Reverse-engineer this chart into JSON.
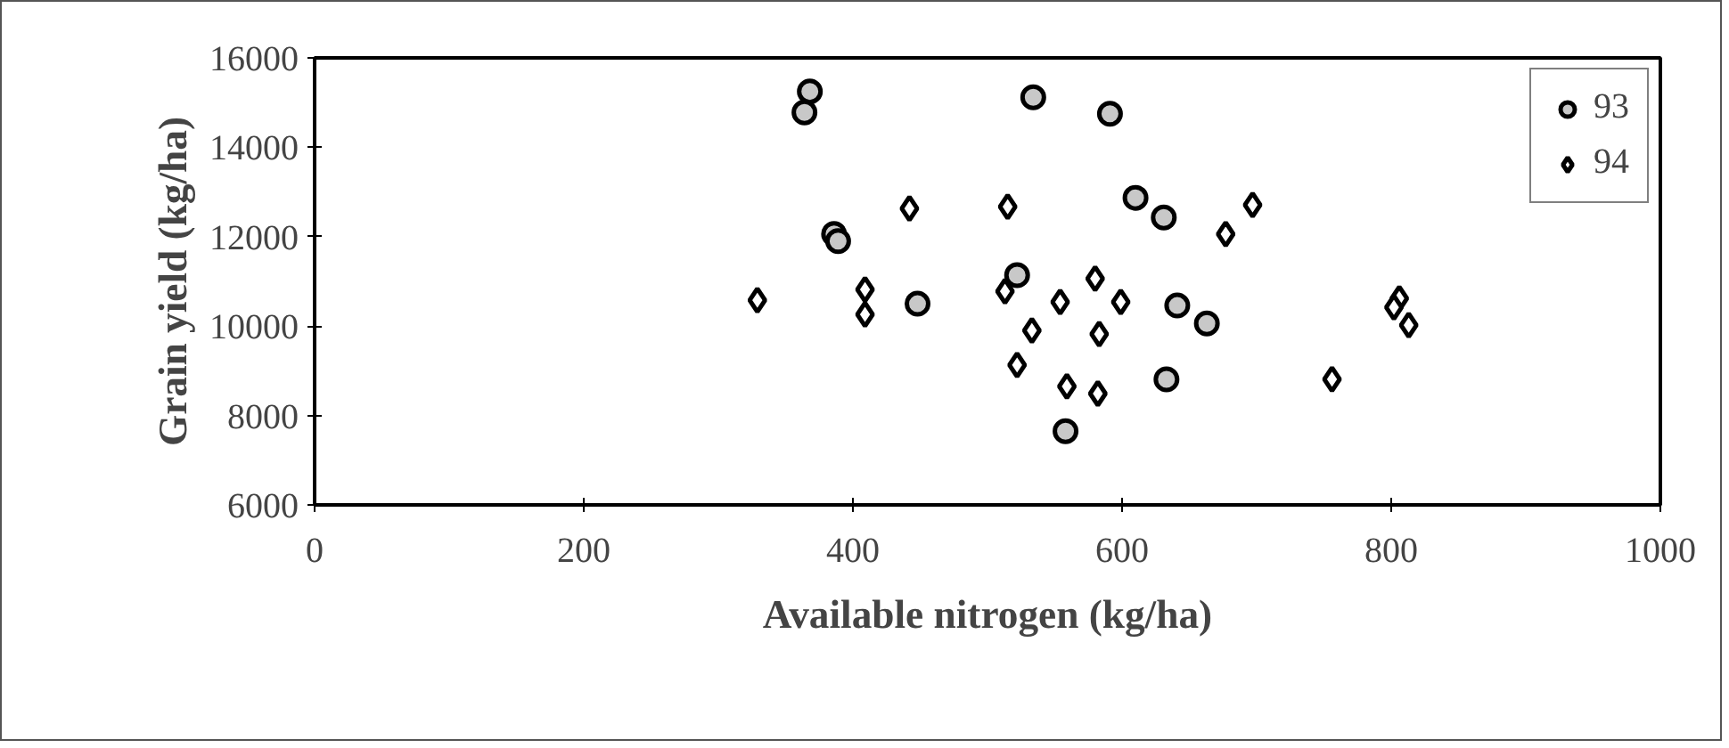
{
  "chart_data": {
    "type": "scatter",
    "xlabel": "Available nitrogen (kg/ha)",
    "ylabel": "Grain yield (kg/ha)",
    "xlim": [
      0,
      1000
    ],
    "xticks": [
      0,
      200,
      400,
      600,
      800,
      1000
    ],
    "ylim": [
      6000,
      16000
    ],
    "yticks": [
      6000,
      8000,
      10000,
      12000,
      14000,
      16000
    ],
    "grid": false,
    "legend": "top right",
    "series": [
      {
        "name": "93",
        "color": "#c8c8c8",
        "marker": "circle",
        "x": [
          368,
          364,
          386,
          389,
          448,
          534,
          591,
          610,
          631,
          522,
          641,
          663,
          633,
          558
        ],
        "values": [
          15250,
          14780,
          12060,
          11900,
          10500,
          15120,
          14750,
          12870,
          12430,
          11140,
          10460,
          10060,
          8810,
          7650
        ]
      },
      {
        "name": "94",
        "color": "#ffffff",
        "marker": "diamond",
        "x": [
          329,
          409,
          409,
          442,
          515,
          697,
          677,
          513,
          580,
          554,
          599,
          533,
          583,
          522,
          559,
          582,
          756,
          806,
          802,
          813
        ],
        "values": [
          10580,
          10820,
          10260,
          12630,
          12670,
          12710,
          12060,
          10780,
          11060,
          10540,
          10540,
          9900,
          9820,
          9130,
          8650,
          8490,
          8810,
          10620,
          10420,
          10020
        ]
      }
    ]
  }
}
